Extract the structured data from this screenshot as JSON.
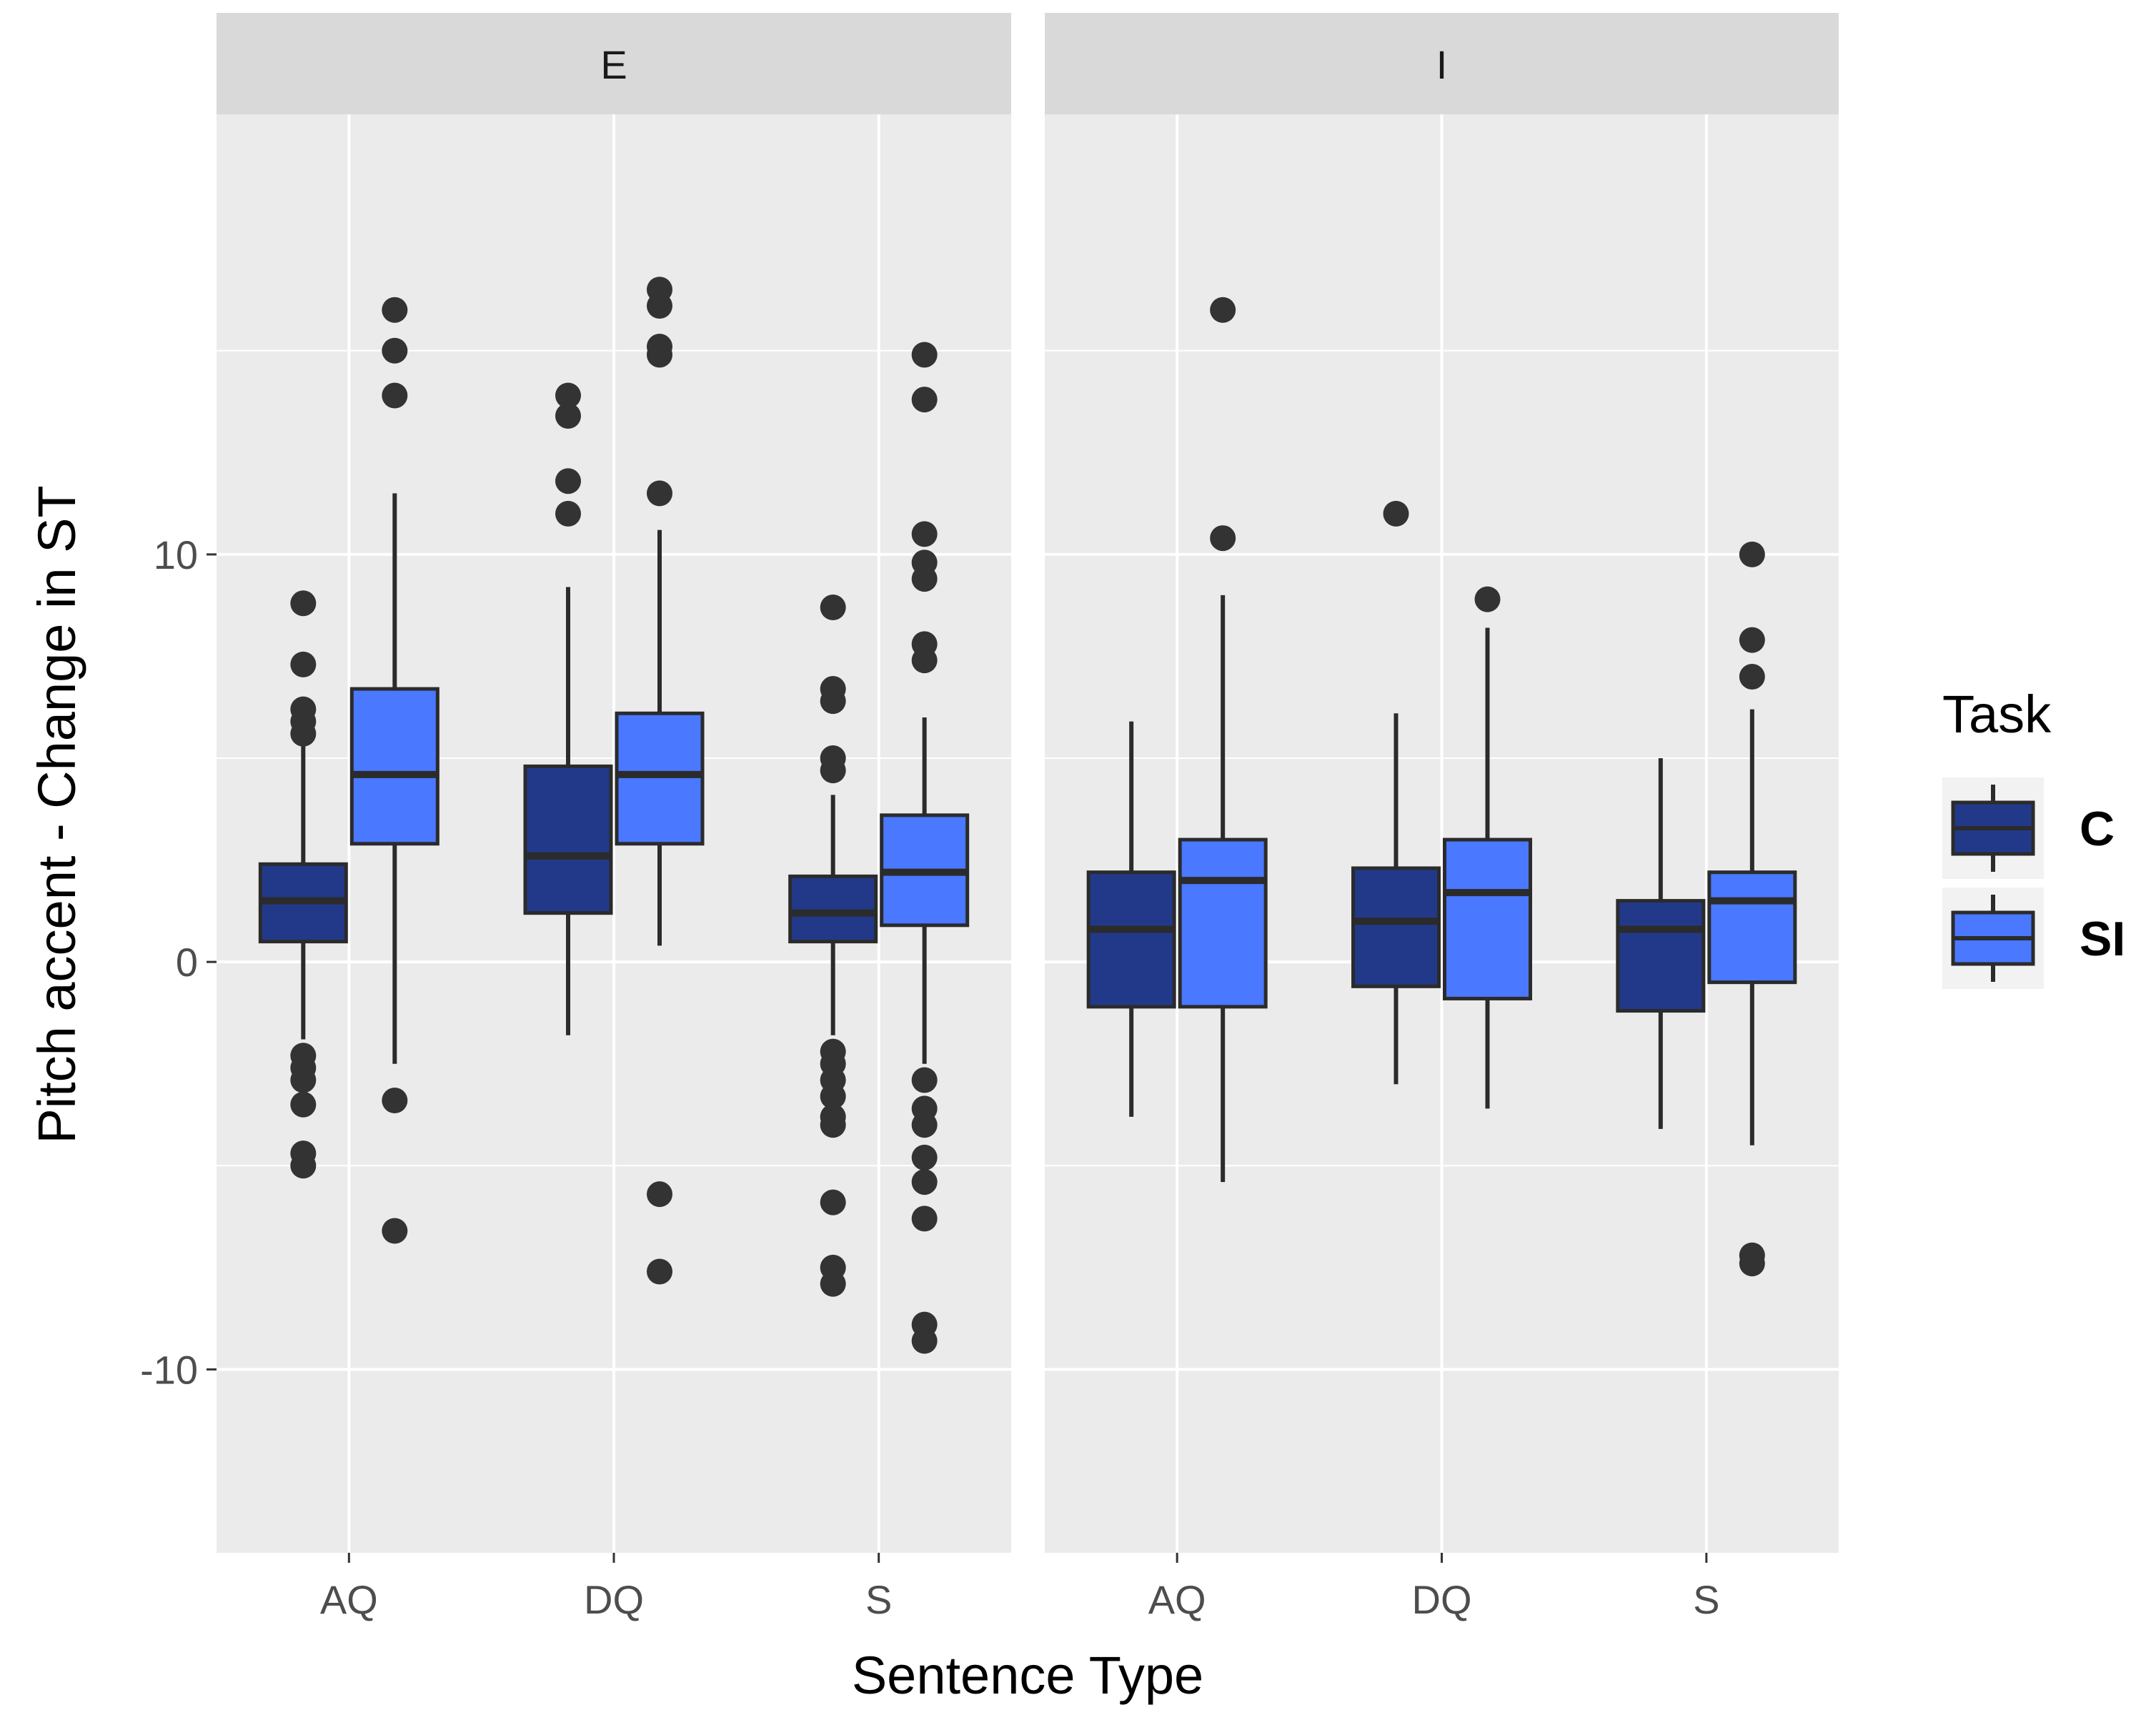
{
  "chart_data": {
    "type": "boxplot",
    "xlabel": "Sentence Type",
    "ylabel": "Pitch accent - Change in ST",
    "ylim": [
      -14.5,
      20.8
    ],
    "yticks": [
      -10,
      0,
      10
    ],
    "categories": [
      "AQ",
      "DQ",
      "S"
    ],
    "legend": {
      "title": "Task",
      "position": "right",
      "entries": [
        {
          "name": "C",
          "color": "#22398a"
        },
        {
          "name": "SI",
          "color": "#4a78ff"
        }
      ]
    },
    "facets": [
      {
        "label": "E",
        "groups": [
          {
            "category": "AQ",
            "task": "C",
            "lower_whisker": -1.9,
            "q1": 0.5,
            "median": 1.5,
            "q3": 2.4,
            "upper_whisker": 5.3,
            "outliers": [
              -2.3,
              -2.6,
              -2.9,
              -3.5,
              -4.7,
              -5.0,
              5.6,
              5.9,
              6.2,
              7.3,
              8.8
            ]
          },
          {
            "category": "AQ",
            "task": "SI",
            "lower_whisker": -2.5,
            "q1": 2.9,
            "median": 4.6,
            "q3": 6.7,
            "upper_whisker": 11.5,
            "outliers": [
              -3.4,
              -6.6,
              13.9,
              15.0,
              16.0
            ]
          },
          {
            "category": "DQ",
            "task": "C",
            "lower_whisker": -1.8,
            "q1": 1.2,
            "median": 2.6,
            "q3": 4.8,
            "upper_whisker": 9.2,
            "outliers": [
              11.0,
              11.8,
              13.4,
              13.9
            ]
          },
          {
            "category": "DQ",
            "task": "SI",
            "lower_whisker": 0.4,
            "q1": 2.9,
            "median": 4.6,
            "q3": 6.1,
            "upper_whisker": 10.6,
            "outliers": [
              -5.7,
              -7.6,
              11.5,
              14.9,
              15.1,
              16.1,
              16.5
            ]
          },
          {
            "category": "S",
            "task": "C",
            "lower_whisker": -1.8,
            "q1": 0.5,
            "median": 1.2,
            "q3": 2.1,
            "upper_whisker": 4.1,
            "outliers": [
              -2.2,
              -2.5,
              -2.9,
              -3.3,
              -3.8,
              -4.0,
              -5.9,
              -7.5,
              -7.9,
              4.7,
              5.0,
              6.4,
              6.7,
              8.7
            ]
          },
          {
            "category": "S",
            "task": "SI",
            "lower_whisker": -2.5,
            "q1": 0.9,
            "median": 2.2,
            "q3": 3.6,
            "upper_whisker": 6.0,
            "outliers": [
              -2.9,
              -3.6,
              -4.0,
              -4.8,
              -5.4,
              -6.3,
              -8.9,
              -9.3,
              7.4,
              7.8,
              9.4,
              9.8,
              10.5,
              13.8,
              14.9
            ]
          }
        ]
      },
      {
        "label": "I",
        "groups": [
          {
            "category": "AQ",
            "task": "C",
            "lower_whisker": -3.8,
            "q1": -1.1,
            "median": 0.8,
            "q3": 2.2,
            "upper_whisker": 5.9,
            "outliers": []
          },
          {
            "category": "AQ",
            "task": "SI",
            "lower_whisker": -5.4,
            "q1": -1.1,
            "median": 2.0,
            "q3": 3.0,
            "upper_whisker": 9.0,
            "outliers": [
              10.4,
              16.0
            ]
          },
          {
            "category": "DQ",
            "task": "C",
            "lower_whisker": -3.0,
            "q1": -0.6,
            "median": 1.0,
            "q3": 2.3,
            "upper_whisker": 6.1,
            "outliers": [
              11.0
            ]
          },
          {
            "category": "DQ",
            "task": "SI",
            "lower_whisker": -3.6,
            "q1": -0.9,
            "median": 1.7,
            "q3": 3.0,
            "upper_whisker": 8.2,
            "outliers": [
              8.9
            ]
          },
          {
            "category": "S",
            "task": "C",
            "lower_whisker": -4.1,
            "q1": -1.2,
            "median": 0.8,
            "q3": 1.5,
            "upper_whisker": 5.0,
            "outliers": []
          },
          {
            "category": "S",
            "task": "SI",
            "lower_whisker": -4.5,
            "q1": -0.5,
            "median": 1.5,
            "q3": 2.2,
            "upper_whisker": 6.2,
            "outliers": [
              -7.2,
              -7.4,
              7.0,
              7.9,
              10.0
            ]
          }
        ]
      }
    ]
  }
}
